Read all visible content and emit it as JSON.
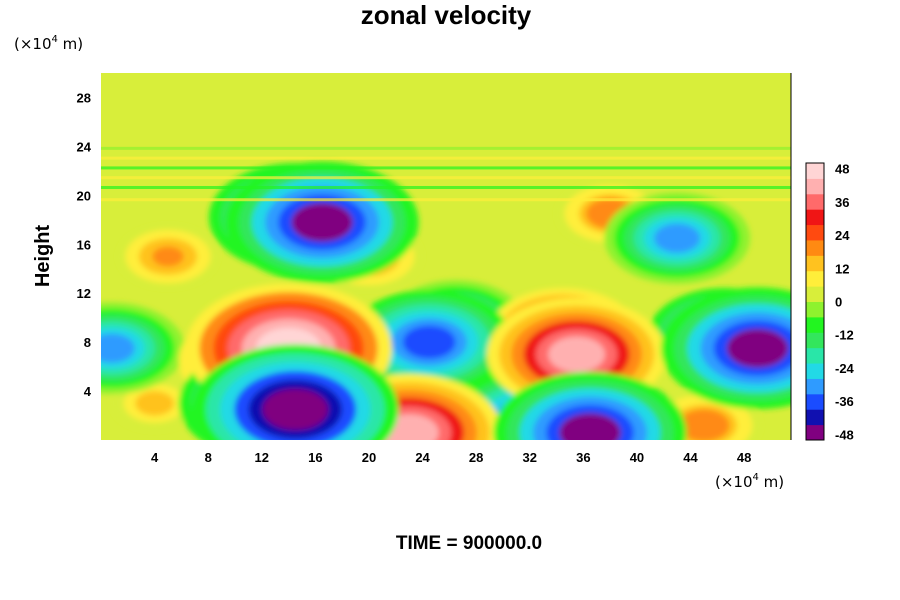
{
  "chart_data": {
    "type": "heatmap",
    "title": "zonal velocity",
    "ylabel": "Height",
    "x_unit": "(×10",
    "x_unit_exp": "4",
    "x_unit_tail": " m)",
    "y_unit": "(×10",
    "y_unit_exp": "4",
    "y_unit_tail": " m)",
    "xlim": [
      0,
      51.5
    ],
    "ylim": [
      0,
      30
    ],
    "x_ticks": [
      "4",
      "8",
      "12",
      "16",
      "20",
      "24",
      "28",
      "32",
      "36",
      "40",
      "44",
      "48"
    ],
    "y_ticks": [
      "4",
      "8",
      "12",
      "16",
      "20",
      "24",
      "28"
    ],
    "colorbar": {
      "range": [
        -50,
        50
      ],
      "ticks": [
        "48",
        "36",
        "24",
        "12",
        "0",
        "-12",
        "-24",
        "-36",
        "-48"
      ],
      "colors": [
        "#800080",
        "#1010b0",
        "#1a4cff",
        "#2f9bff",
        "#22d9e6",
        "#29e6a8",
        "#33e65c",
        "#22f520",
        "#8ef22e",
        "#d8ee3a",
        "#ffee3a",
        "#ffc21f",
        "#ff8a12",
        "#ff4a10",
        "#f01515",
        "#ff6a6a",
        "#ffb0b0",
        "#ffd5d5"
      ]
    },
    "features": [
      {
        "x": 14,
        "y": 7.5,
        "value": 50
      },
      {
        "x": 13.5,
        "y": 8.2,
        "value": 40
      },
      {
        "x": 12,
        "y": 6.5,
        "value": 38
      },
      {
        "x": 35.5,
        "y": 7,
        "value": 42
      },
      {
        "x": 34.5,
        "y": 8.5,
        "value": 34
      },
      {
        "x": 23,
        "y": 0.6,
        "value": 44
      },
      {
        "x": 45,
        "y": 1.2,
        "value": 22
      },
      {
        "x": 14.5,
        "y": 2.5,
        "value": -50
      },
      {
        "x": 12.5,
        "y": 3,
        "value": -42
      },
      {
        "x": 16.5,
        "y": 17.8,
        "value": -46
      },
      {
        "x": 14.5,
        "y": 18.2,
        "value": -40
      },
      {
        "x": 24.5,
        "y": 8,
        "value": -38
      },
      {
        "x": 26.5,
        "y": 9.5,
        "value": -30
      },
      {
        "x": 49,
        "y": 7.5,
        "value": -46
      },
      {
        "x": 46.5,
        "y": 8.5,
        "value": -34
      },
      {
        "x": 36.5,
        "y": 0.6,
        "value": -46
      },
      {
        "x": 32,
        "y": 1.5,
        "value": -38
      },
      {
        "x": 0.8,
        "y": 7.5,
        "value": -32
      },
      {
        "x": 5,
        "y": 15,
        "value": 18
      },
      {
        "x": 20,
        "y": 15,
        "value": 20
      },
      {
        "x": 38,
        "y": 18.5,
        "value": 20
      },
      {
        "x": 43,
        "y": 16.5,
        "value": -32
      },
      {
        "x": 4,
        "y": 3,
        "value": 14
      },
      {
        "x": 21,
        "y": 4,
        "value": -16
      }
    ],
    "time_label": "TIME = 900000.0"
  }
}
